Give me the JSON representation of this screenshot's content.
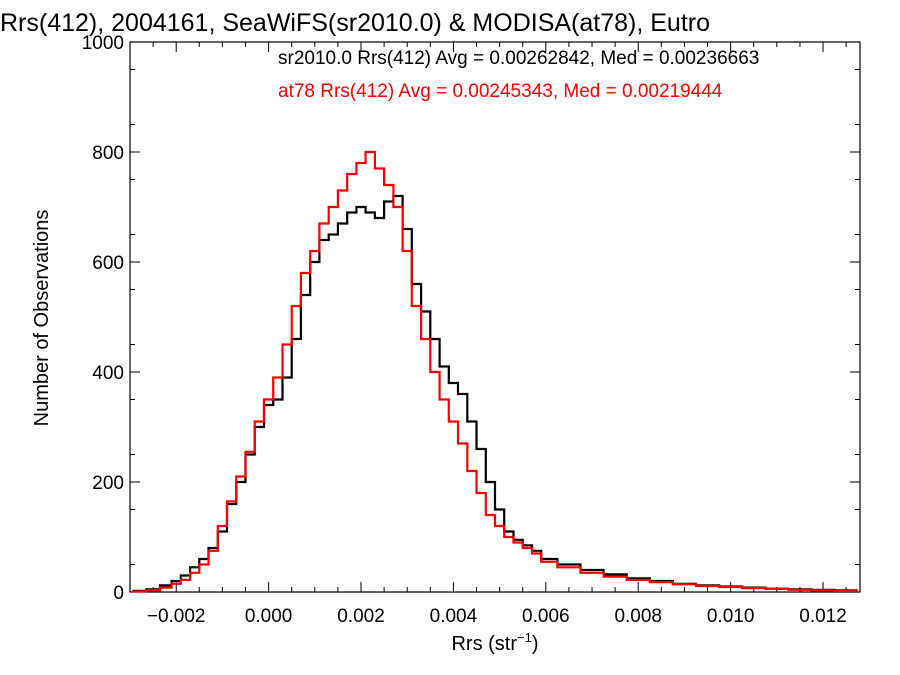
{
  "chart_data": {
    "type": "histogram-step",
    "title": "Rrs(412), 2004161, SeaWiFS(sr2010.0) & MODISA(at78), Eutro",
    "xlabel": "Rrs (str",
    "xlabel_sup": "−1",
    "xlabel_close": ")",
    "ylabel": "Number of Observations",
    "xlim": [
      -0.003,
      0.0128
    ],
    "ylim": [
      0,
      1000
    ],
    "x_ticks": [
      -0.002,
      0.0,
      0.002,
      0.004,
      0.006,
      0.008,
      0.01,
      0.012
    ],
    "x_tick_labels": [
      "−0.002",
      "0.000",
      "0.002",
      "0.004",
      "0.006",
      "0.008",
      "0.010",
      "0.012"
    ],
    "y_ticks": [
      0,
      200,
      400,
      600,
      800,
      1000
    ],
    "y_tick_labels": [
      "0",
      "200",
      "400",
      "600",
      "800",
      "1000"
    ],
    "grid": false,
    "legend_position": "top-right",
    "series": [
      {
        "name": "sr2010.0",
        "color": "#000000",
        "legend": "sr2010.0 Rrs(412) Avg = 0.00262842, Med = 0.00236663",
        "x": [
          -0.0028,
          -0.0025,
          -0.0022,
          -0.002,
          -0.0018,
          -0.0016,
          -0.0014,
          -0.0012,
          -0.001,
          -0.0008,
          -0.0006,
          -0.0004,
          -0.0002,
          0.0,
          0.0002,
          0.0004,
          0.0006,
          0.0008,
          0.001,
          0.0012,
          0.0014,
          0.0016,
          0.0018,
          0.002,
          0.0022,
          0.0024,
          0.0026,
          0.0028,
          0.003,
          0.0032,
          0.0034,
          0.0036,
          0.0038,
          0.004,
          0.0042,
          0.0044,
          0.0046,
          0.0048,
          0.005,
          0.0052,
          0.0054,
          0.0056,
          0.0058,
          0.006,
          0.0065,
          0.007,
          0.0075,
          0.008,
          0.0085,
          0.009,
          0.0095,
          0.01,
          0.0105,
          0.011,
          0.0115,
          0.012,
          0.0125
        ],
        "y": [
          2,
          5,
          12,
          20,
          30,
          45,
          60,
          80,
          110,
          160,
          200,
          250,
          300,
          340,
          350,
          390,
          460,
          540,
          600,
          640,
          650,
          670,
          690,
          700,
          690,
          680,
          710,
          720,
          660,
          560,
          510,
          460,
          410,
          380,
          360,
          310,
          260,
          200,
          150,
          110,
          95,
          85,
          75,
          60,
          50,
          40,
          32,
          25,
          20,
          15,
          12,
          10,
          8,
          6,
          5,
          4,
          3
        ]
      },
      {
        "name": "at78",
        "color": "#ff0000",
        "legend": "at78 Rrs(412) Avg = 0.00245343, Med = 0.00219444",
        "x": [
          -0.0028,
          -0.0025,
          -0.0022,
          -0.002,
          -0.0018,
          -0.0016,
          -0.0014,
          -0.0012,
          -0.001,
          -0.0008,
          -0.0006,
          -0.0004,
          -0.0002,
          0.0,
          0.0002,
          0.0004,
          0.0006,
          0.0008,
          0.001,
          0.0012,
          0.0014,
          0.0016,
          0.0018,
          0.002,
          0.0022,
          0.0024,
          0.0026,
          0.0028,
          0.003,
          0.0032,
          0.0034,
          0.0036,
          0.0038,
          0.004,
          0.0042,
          0.0044,
          0.0046,
          0.0048,
          0.005,
          0.0052,
          0.0054,
          0.0056,
          0.0058,
          0.006,
          0.0065,
          0.007,
          0.0075,
          0.008,
          0.0085,
          0.009,
          0.0095,
          0.01,
          0.0105,
          0.011,
          0.0115,
          0.012,
          0.0125
        ],
        "y": [
          1,
          3,
          8,
          15,
          22,
          35,
          50,
          75,
          120,
          165,
          210,
          255,
          310,
          350,
          390,
          450,
          520,
          580,
          620,
          670,
          700,
          730,
          760,
          780,
          800,
          770,
          740,
          700,
          620,
          520,
          460,
          400,
          350,
          310,
          270,
          220,
          180,
          140,
          120,
          100,
          90,
          80,
          70,
          55,
          45,
          35,
          28,
          22,
          18,
          14,
          11,
          9,
          7,
          6,
          4,
          3,
          2
        ]
      }
    ]
  }
}
